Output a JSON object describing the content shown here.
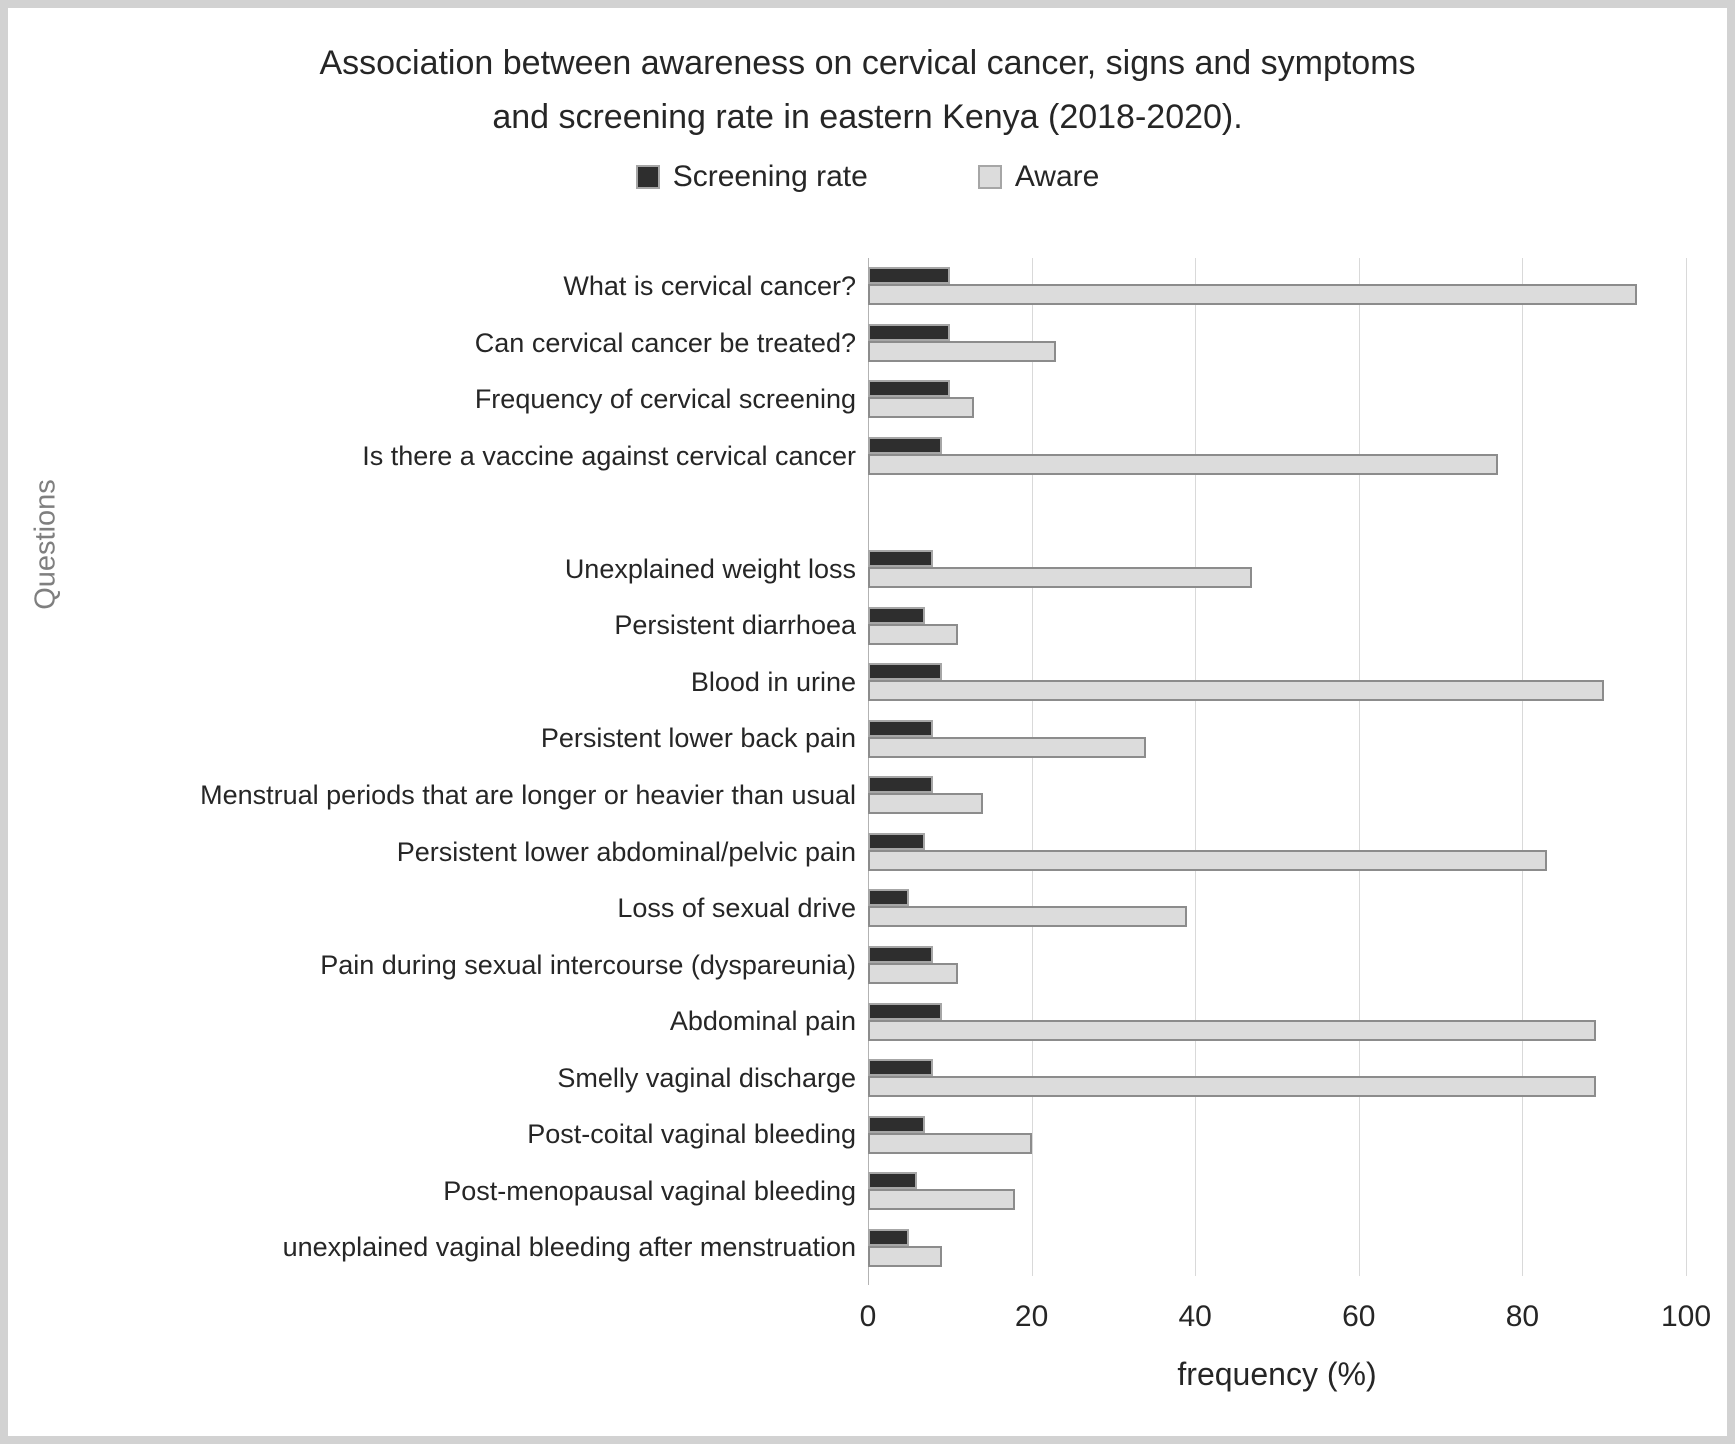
{
  "chart_data": {
    "type": "bar",
    "orientation": "horizontal",
    "title": "Association between awareness on cervical cancer, signs and symptoms and screening rate in eastern Kenya (2018-2020).",
    "title_lines": [
      "Association between awareness on cervical cancer, signs and symptoms",
      "and screening rate in eastern Kenya (2018-2020)."
    ],
    "xlabel": "frequency (%)",
    "ylabel": "Questions",
    "xlim": [
      0,
      100
    ],
    "x_ticks": [
      0,
      20,
      40,
      60,
      80,
      100
    ],
    "grid": true,
    "legend_position": "top",
    "gap_after_index": 4,
    "categories": [
      "What is cervical cancer?",
      "Can cervical cancer be treated?",
      "Frequency of cervical screening",
      "Is there a vaccine against cervical cancer",
      "Unexplained weight loss",
      "Persistent diarrhoea",
      "Blood in urine",
      "Persistent lower back pain",
      "Menstrual periods that are longer or heavier than usual",
      "Persistent lower abdominal/pelvic pain",
      "Loss of sexual drive",
      "Pain during sexual intercourse (dyspareunia)",
      "Abdominal pain",
      "Smelly vaginal discharge",
      "Post-coital vaginal bleeding",
      "Post-menopausal vaginal bleeding",
      "unexplained vaginal bleeding after menstruation"
    ],
    "series": [
      {
        "name": "Screening rate",
        "color": "#2e2e2e",
        "border_color": "#a6a6a6",
        "values": [
          10,
          10,
          10,
          9,
          8,
          7,
          9,
          8,
          8,
          7,
          5,
          8,
          9,
          8,
          7,
          6,
          5
        ]
      },
      {
        "name": "Aware",
        "color": "#dcdcdc",
        "border_color": "#8c8c8c",
        "values": [
          94,
          23,
          13,
          77,
          47,
          11,
          90,
          34,
          14,
          83,
          39,
          11,
          89,
          89,
          20,
          18,
          9
        ]
      }
    ],
    "colors": {
      "gridline": "#d9d9d9",
      "axis_line": "#b3b3b3",
      "text": "#262626",
      "axis_title_muted": "#7f7f7f"
    }
  }
}
